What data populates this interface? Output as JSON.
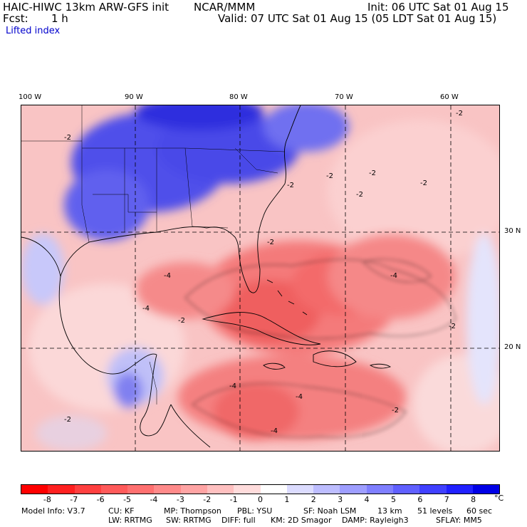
{
  "header": {
    "model_line": "HAIC-HIWC 13km ARW-GFS init",
    "center": "NCAR/MMM",
    "init": "Init: 06 UTC Sat 01 Aug 15",
    "fcst_label": "Fcst:",
    "fcst_value": "1 h",
    "valid": "Valid: 07 UTC Sat 01 Aug 15 (05 LDT Sat 01 Aug 15)",
    "field": "Lifted index"
  },
  "map": {
    "lon_labels": [
      "100 W",
      "90 W",
      "80 W",
      "70 W",
      "60 W"
    ],
    "lat_labels": [
      "30 N",
      "20 N"
    ],
    "contour_labels": [
      "-2",
      "-4"
    ]
  },
  "colorbar": {
    "ticks": [
      "-8",
      "-7",
      "-6",
      "-5",
      "-4",
      "-3",
      "-2",
      "-1",
      "0",
      "1",
      "2",
      "3",
      "4",
      "5",
      "6",
      "7",
      "8"
    ],
    "unit": "°C",
    "colors": [
      "#ff0000",
      "#ff2020",
      "#ff4040",
      "#ff5a5a",
      "#ff7070",
      "#ff8a8a",
      "#ffa4a4",
      "#ffc0c0",
      "#ffdcdc",
      "#ffffff",
      "#dcdcff",
      "#bdbdff",
      "#9e9eff",
      "#7f7fff",
      "#6060ff",
      "#4040ff",
      "#2020ff",
      "#0000e6"
    ]
  },
  "info": {
    "line1": [
      "Model Info: V3.7",
      "CU: KF",
      "MP: Thompson",
      "PBL: YSU",
      "SF: Noah LSM",
      "13 km",
      "51 levels",
      "60 sec"
    ],
    "line2": [
      "LW: RRTMG",
      "SW: RRTMG",
      "DIFF: full",
      "KM: 2D Smagor",
      "DAMP: Rayleigh3",
      "SFLAY: MM5"
    ]
  }
}
